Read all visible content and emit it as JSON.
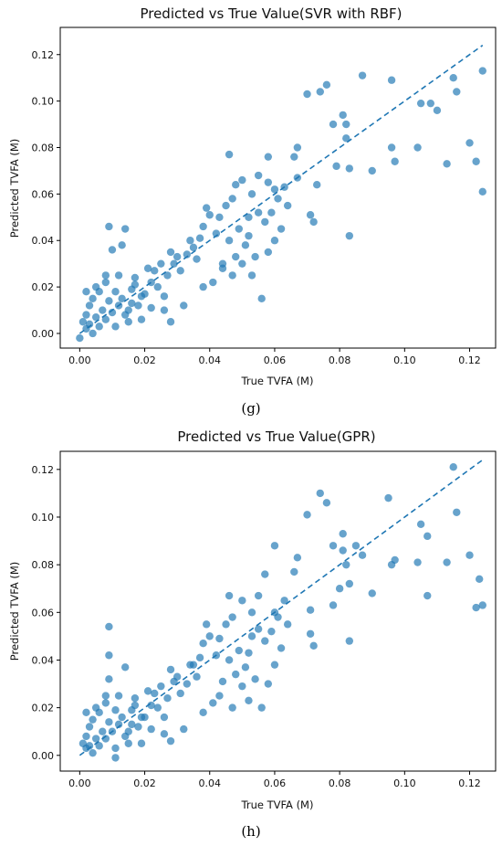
{
  "panels": [
    {
      "caption": "(g)"
    },
    {
      "caption": "(h)"
    }
  ],
  "colors": {
    "point": "#1f77b4",
    "reference_line": "#1f77b4",
    "axes": "#000000"
  },
  "chart_data": [
    {
      "type": "scatter",
      "title": "Predicted vs True Value(SVR with RBF)",
      "xlabel": "True TVFA (M)",
      "ylabel": "Predicted TVFA (M)",
      "xlim": [
        -0.006,
        0.128
      ],
      "ylim": [
        -0.0063,
        0.1317
      ],
      "xticks": [
        0.0,
        0.02,
        0.04,
        0.06,
        0.08,
        0.1,
        0.12
      ],
      "xtick_labels": [
        "0.00",
        "0.02",
        "0.04",
        "0.06",
        "0.08",
        "0.10",
        "0.12"
      ],
      "yticks": [
        0.0,
        0.02,
        0.04,
        0.06,
        0.08,
        0.1,
        0.12
      ],
      "ytick_labels": [
        "0.00",
        "0.02",
        "0.04",
        "0.06",
        "0.08",
        "0.10",
        "0.12"
      ],
      "reference_line": {
        "style": "dashed",
        "points": [
          [
            0.0,
            0.0
          ],
          [
            0.124,
            0.124
          ]
        ]
      },
      "grid": false,
      "points": [
        [
          0.07,
          0.103
        ],
        [
          0.074,
          0.104
        ],
        [
          0.076,
          0.107
        ],
        [
          0.087,
          0.111
        ],
        [
          0.096,
          0.109
        ],
        [
          0.115,
          0.11
        ],
        [
          0.116,
          0.104
        ],
        [
          0.124,
          0.113
        ],
        [
          0.105,
          0.099
        ],
        [
          0.108,
          0.099
        ],
        [
          0.11,
          0.096
        ],
        [
          0.081,
          0.094
        ],
        [
          0.082,
          0.09
        ],
        [
          0.078,
          0.09
        ],
        [
          0.082,
          0.084
        ],
        [
          0.096,
          0.08
        ],
        [
          0.104,
          0.08
        ],
        [
          0.097,
          0.074
        ],
        [
          0.113,
          0.073
        ],
        [
          0.12,
          0.082
        ],
        [
          0.122,
          0.074
        ],
        [
          0.124,
          0.061
        ],
        [
          0.079,
          0.072
        ],
        [
          0.083,
          0.071
        ],
        [
          0.09,
          0.07
        ],
        [
          0.067,
          0.08
        ],
        [
          0.066,
          0.076
        ],
        [
          0.058,
          0.076
        ],
        [
          0.071,
          0.051
        ],
        [
          0.072,
          0.048
        ],
        [
          0.083,
          0.042
        ],
        [
          0.073,
          0.064
        ],
        [
          0.046,
          0.077
        ],
        [
          0.067,
          0.067
        ],
        [
          0.063,
          0.063
        ],
        [
          0.055,
          0.068
        ],
        [
          0.058,
          0.065
        ],
        [
          0.06,
          0.062
        ],
        [
          0.05,
          0.066
        ],
        [
          0.048,
          0.064
        ],
        [
          0.056,
          0.015
        ],
        [
          0.053,
          0.025
        ],
        [
          0.047,
          0.025
        ],
        [
          0.044,
          0.028
        ],
        [
          0.058,
          0.035
        ],
        [
          0.06,
          0.04
        ],
        [
          0.062,
          0.045
        ],
        [
          0.064,
          0.055
        ],
        [
          0.052,
          0.05
        ],
        [
          0.049,
          0.045
        ],
        [
          0.055,
          0.052
        ],
        [
          0.045,
          0.055
        ],
        [
          0.043,
          0.05
        ],
        [
          0.04,
          0.051
        ],
        [
          0.038,
          0.046
        ],
        [
          0.042,
          0.043
        ],
        [
          0.046,
          0.04
        ],
        [
          0.051,
          0.038
        ],
        [
          0.054,
          0.033
        ],
        [
          0.036,
          0.032
        ],
        [
          0.034,
          0.04
        ],
        [
          0.033,
          0.034
        ],
        [
          0.031,
          0.027
        ],
        [
          0.029,
          0.03
        ],
        [
          0.028,
          0.035
        ],
        [
          0.025,
          0.03
        ],
        [
          0.023,
          0.027
        ],
        [
          0.022,
          0.022
        ],
        [
          0.02,
          0.017
        ],
        [
          0.018,
          0.012
        ],
        [
          0.015,
          0.01
        ],
        [
          0.014,
          0.045
        ],
        [
          0.009,
          0.046
        ],
        [
          0.013,
          0.038
        ],
        [
          0.01,
          0.036
        ],
        [
          0.026,
          0.01
        ],
        [
          0.019,
          0.006
        ],
        [
          0.028,
          0.005
        ],
        [
          0.032,
          0.012
        ],
        [
          0.038,
          0.02
        ],
        [
          0.041,
          0.022
        ],
        [
          0.044,
          0.03
        ],
        [
          0.048,
          0.033
        ],
        [
          0.05,
          0.03
        ],
        [
          0.052,
          0.042
        ],
        [
          0.057,
          0.048
        ],
        [
          0.059,
          0.052
        ],
        [
          0.061,
          0.058
        ],
        [
          0.053,
          0.06
        ],
        [
          0.047,
          0.058
        ],
        [
          0.039,
          0.054
        ],
        [
          0.037,
          0.041
        ],
        [
          0.035,
          0.037
        ],
        [
          0.03,
          0.033
        ],
        [
          0.027,
          0.025
        ],
        [
          0.024,
          0.02
        ],
        [
          0.021,
          0.028
        ],
        [
          0.017,
          0.024
        ],
        [
          0.016,
          0.019
        ],
        [
          0.012,
          0.025
        ],
        [
          0.008,
          0.022
        ],
        [
          0.006,
          0.018
        ],
        [
          0.004,
          0.015
        ],
        [
          0.003,
          0.012
        ],
        [
          0.002,
          0.008
        ],
        [
          0.001,
          0.005
        ],
        [
          0.002,
          0.002
        ],
        [
          0.004,
          0.0
        ],
        [
          0.006,
          0.003
        ],
        [
          0.008,
          0.006
        ],
        [
          0.01,
          0.009
        ],
        [
          0.012,
          0.012
        ],
        [
          0.013,
          0.015
        ],
        [
          0.011,
          0.018
        ],
        [
          0.009,
          0.014
        ],
        [
          0.007,
          0.01
        ],
        [
          0.005,
          0.007
        ],
        [
          0.003,
          0.004
        ],
        [
          0.014,
          0.008
        ],
        [
          0.016,
          0.013
        ],
        [
          0.019,
          0.016
        ],
        [
          0.017,
          0.021
        ],
        [
          0.008,
          0.025
        ],
        [
          0.005,
          0.02
        ],
        [
          0.002,
          0.018
        ],
        [
          0.0,
          -0.002
        ],
        [
          0.011,
          0.003
        ],
        [
          0.015,
          0.005
        ],
        [
          0.022,
          0.011
        ],
        [
          0.026,
          0.016
        ]
      ]
    },
    {
      "type": "scatter",
      "title": "Predicted vs True Value(GPR)",
      "xlabel": "True TVFA (M)",
      "ylabel": "Predicted TVFA (M)",
      "xlim": [
        -0.006,
        0.128
      ],
      "ylim": [
        -0.0066,
        0.1276
      ],
      "xticks": [
        0.0,
        0.02,
        0.04,
        0.06,
        0.08,
        0.1,
        0.12
      ],
      "xtick_labels": [
        "0.00",
        "0.02",
        "0.04",
        "0.06",
        "0.08",
        "0.10",
        "0.12"
      ],
      "yticks": [
        0.0,
        0.02,
        0.04,
        0.06,
        0.08,
        0.1,
        0.12
      ],
      "ytick_labels": [
        "0.00",
        "0.02",
        "0.04",
        "0.06",
        "0.08",
        "0.10",
        "0.12"
      ],
      "reference_line": {
        "style": "dashed",
        "points": [
          [
            0.0,
            0.0
          ],
          [
            0.124,
            0.124
          ]
        ]
      },
      "grid": false,
      "points": [
        [
          0.074,
          0.11
        ],
        [
          0.076,
          0.106
        ],
        [
          0.07,
          0.101
        ],
        [
          0.095,
          0.108
        ],
        [
          0.115,
          0.121
        ],
        [
          0.116,
          0.102
        ],
        [
          0.105,
          0.097
        ],
        [
          0.107,
          0.092
        ],
        [
          0.081,
          0.093
        ],
        [
          0.078,
          0.088
        ],
        [
          0.085,
          0.088
        ],
        [
          0.081,
          0.086
        ],
        [
          0.087,
          0.084
        ],
        [
          0.082,
          0.08
        ],
        [
          0.096,
          0.08
        ],
        [
          0.097,
          0.082
        ],
        [
          0.104,
          0.081
        ],
        [
          0.113,
          0.081
        ],
        [
          0.12,
          0.084
        ],
        [
          0.123,
          0.074
        ],
        [
          0.122,
          0.062
        ],
        [
          0.124,
          0.063
        ],
        [
          0.107,
          0.067
        ],
        [
          0.09,
          0.068
        ],
        [
          0.083,
          0.072
        ],
        [
          0.08,
          0.07
        ],
        [
          0.078,
          0.063
        ],
        [
          0.071,
          0.061
        ],
        [
          0.071,
          0.051
        ],
        [
          0.072,
          0.046
        ],
        [
          0.083,
          0.048
        ],
        [
          0.06,
          0.088
        ],
        [
          0.067,
          0.083
        ],
        [
          0.066,
          0.077
        ],
        [
          0.057,
          0.076
        ],
        [
          0.063,
          0.065
        ],
        [
          0.06,
          0.06
        ],
        [
          0.055,
          0.067
        ],
        [
          0.046,
          0.067
        ],
        [
          0.05,
          0.065
        ],
        [
          0.056,
          0.02
        ],
        [
          0.052,
          0.023
        ],
        [
          0.047,
          0.02
        ],
        [
          0.043,
          0.025
        ],
        [
          0.058,
          0.03
        ],
        [
          0.06,
          0.038
        ],
        [
          0.062,
          0.045
        ],
        [
          0.064,
          0.055
        ],
        [
          0.053,
          0.05
        ],
        [
          0.049,
          0.044
        ],
        [
          0.055,
          0.053
        ],
        [
          0.045,
          0.055
        ],
        [
          0.043,
          0.049
        ],
        [
          0.04,
          0.05
        ],
        [
          0.038,
          0.047
        ],
        [
          0.042,
          0.042
        ],
        [
          0.046,
          0.04
        ],
        [
          0.051,
          0.037
        ],
        [
          0.054,
          0.032
        ],
        [
          0.036,
          0.033
        ],
        [
          0.034,
          0.038
        ],
        [
          0.033,
          0.03
        ],
        [
          0.031,
          0.026
        ],
        [
          0.029,
          0.031
        ],
        [
          0.028,
          0.036
        ],
        [
          0.025,
          0.029
        ],
        [
          0.023,
          0.026
        ],
        [
          0.022,
          0.021
        ],
        [
          0.02,
          0.016
        ],
        [
          0.018,
          0.012
        ],
        [
          0.015,
          0.01
        ],
        [
          0.009,
          0.054
        ],
        [
          0.009,
          0.042
        ],
        [
          0.014,
          0.037
        ],
        [
          0.009,
          0.032
        ],
        [
          0.026,
          0.009
        ],
        [
          0.019,
          0.005
        ],
        [
          0.028,
          0.006
        ],
        [
          0.032,
          0.011
        ],
        [
          0.038,
          0.018
        ],
        [
          0.041,
          0.022
        ],
        [
          0.044,
          0.031
        ],
        [
          0.048,
          0.034
        ],
        [
          0.05,
          0.029
        ],
        [
          0.052,
          0.043
        ],
        [
          0.057,
          0.048
        ],
        [
          0.059,
          0.052
        ],
        [
          0.061,
          0.058
        ],
        [
          0.053,
          0.06
        ],
        [
          0.047,
          0.058
        ],
        [
          0.039,
          0.055
        ],
        [
          0.037,
          0.041
        ],
        [
          0.035,
          0.038
        ],
        [
          0.03,
          0.033
        ],
        [
          0.027,
          0.024
        ],
        [
          0.024,
          0.02
        ],
        [
          0.021,
          0.027
        ],
        [
          0.017,
          0.024
        ],
        [
          0.016,
          0.019
        ],
        [
          0.012,
          0.025
        ],
        [
          0.008,
          0.022
        ],
        [
          0.006,
          0.018
        ],
        [
          0.004,
          0.015
        ],
        [
          0.003,
          0.012
        ],
        [
          0.002,
          0.008
        ],
        [
          0.001,
          0.005
        ],
        [
          0.002,
          0.003
        ],
        [
          0.004,
          0.001
        ],
        [
          0.006,
          0.004
        ],
        [
          0.008,
          0.007
        ],
        [
          0.01,
          0.01
        ],
        [
          0.012,
          0.013
        ],
        [
          0.013,
          0.016
        ],
        [
          0.011,
          0.019
        ],
        [
          0.009,
          0.014
        ],
        [
          0.007,
          0.01
        ],
        [
          0.005,
          0.007
        ],
        [
          0.003,
          0.004
        ],
        [
          0.014,
          0.008
        ],
        [
          0.016,
          0.013
        ],
        [
          0.019,
          0.016
        ],
        [
          0.017,
          0.021
        ],
        [
          0.008,
          0.025
        ],
        [
          0.005,
          0.02
        ],
        [
          0.002,
          0.018
        ],
        [
          0.011,
          -0.001
        ],
        [
          0.011,
          0.003
        ],
        [
          0.015,
          0.005
        ],
        [
          0.022,
          0.011
        ],
        [
          0.026,
          0.016
        ]
      ]
    }
  ]
}
